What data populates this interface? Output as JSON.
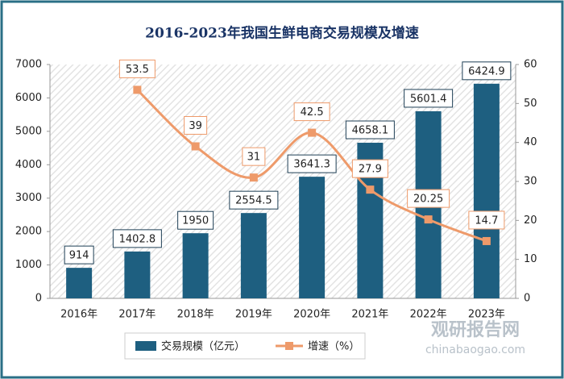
{
  "chart_data": {
    "type": "bar-line",
    "title": "2016-2023年我国生鲜电商交易规模及增速",
    "categories": [
      "2016年",
      "2017年",
      "2018年",
      "2019年",
      "2020年",
      "2021年",
      "2022年",
      "2023年"
    ],
    "series": [
      {
        "name": "交易规模（亿元）",
        "color": "#1e5f80",
        "type": "bar",
        "values": [
          914,
          1402.8,
          1950,
          2554.5,
          3641.3,
          4658.1,
          5601.4,
          6424.9
        ]
      },
      {
        "name": "增速（%）",
        "color": "#ee9a6a",
        "type": "line",
        "axis": "y2",
        "values": [
          null,
          53.5,
          39,
          31,
          42.5,
          27.9,
          20.25,
          14.7
        ]
      }
    ],
    "ylim": [
      0,
      7000
    ],
    "yticks": [
      0,
      1000,
      2000,
      3000,
      4000,
      5000,
      6000,
      7000
    ],
    "y2lim": [
      0,
      60
    ],
    "y2ticks": [
      0,
      10,
      20,
      30,
      40,
      50,
      60
    ],
    "watermark": {
      "name": "观研报告网",
      "url": "chinabaogao.com"
    }
  }
}
